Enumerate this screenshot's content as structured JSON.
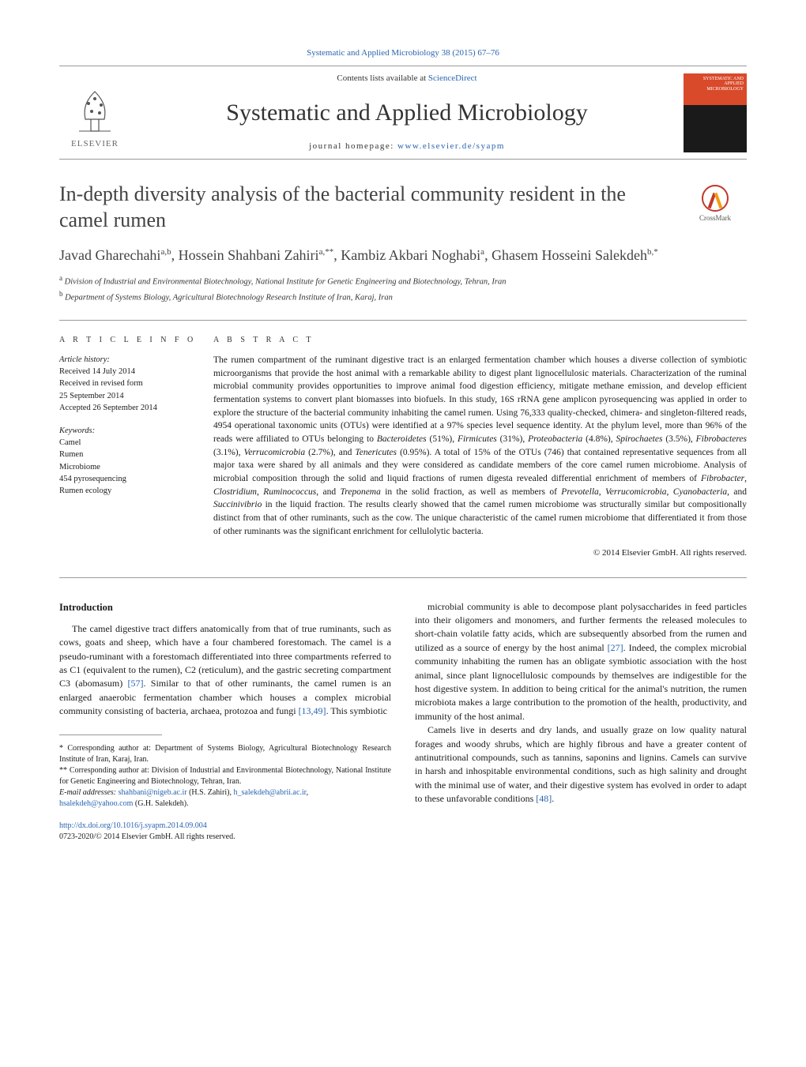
{
  "top_link": "Systematic and Applied Microbiology 38 (2015) 67–76",
  "header": {
    "contents_prefix": "Contents lists available at ",
    "contents_link": "ScienceDirect",
    "journal_name": "Systematic and Applied Microbiology",
    "homepage_prefix": "journal homepage: ",
    "homepage_url": "www.elsevier.de/syapm",
    "elsevier_label": "ELSEVIER",
    "cover_text": "SYSTEMATIC AND APPLIED MICROBIOLOGY"
  },
  "title": "In-depth diversity analysis of the bacterial community resident in the camel rumen",
  "crossmark_label": "CrossMark",
  "authors_html": "Javad Gharechahi<sup>a,b</sup>, Hossein Shahbani Zahiri<sup>a,**</sup>, Kambiz Akbari Noghabi<sup>a</sup>, Ghasem Hosseini Salekdeh<sup>b,*</sup>",
  "affiliations": [
    {
      "sup": "a",
      "text": "Division of Industrial and Environmental Biotechnology, National Institute for Genetic Engineering and Biotechnology, Tehran, Iran"
    },
    {
      "sup": "b",
      "text": "Department of Systems Biology, Agricultural Biotechnology Research Institute of Iran, Karaj, Iran"
    }
  ],
  "article_info": {
    "heading": "a r t i c l e   i n f o",
    "history_title": "Article history:",
    "history": [
      "Received 14 July 2014",
      "Received in revised form",
      "25 September 2014",
      "Accepted 26 September 2014"
    ],
    "keywords_title": "Keywords:",
    "keywords": [
      "Camel",
      "Rumen",
      "Microbiome",
      "454 pyrosequencing",
      "Rumen ecology"
    ]
  },
  "abstract": {
    "heading": "a b s t r a c t",
    "text_html": "The rumen compartment of the ruminant digestive tract is an enlarged fermentation chamber which houses a diverse collection of symbiotic microorganisms that provide the host animal with a remarkable ability to digest plant lignocellulosic materials. Characterization of the ruminal microbial community provides opportunities to improve animal food digestion efficiency, mitigate methane emission, and develop efficient fermentation systems to convert plant biomasses into biofuels. In this study, 16S rRNA gene amplicon pyrosequencing was applied in order to explore the structure of the bacterial community inhabiting the camel rumen. Using 76,333 quality-checked, chimera- and singleton-filtered reads, 4954 operational taxonomic units (OTUs) were identified at a 97% species level sequence identity. At the phylum level, more than 96% of the reads were affiliated to OTUs belonging to <i>Bacteroidetes</i> (51%), <i>Firmicutes</i> (31%), <i>Proteobacteria</i> (4.8%), <i>Spirochaetes</i> (3.5%), <i>Fibrobacteres</i> (3.1%), <i>Verrucomicrobia</i> (2.7%), and <i>Tenericutes</i> (0.95%). A total of 15% of the OTUs (746) that contained representative sequences from all major taxa were shared by all animals and they were considered as candidate members of the core camel rumen microbiome. Analysis of microbial composition through the solid and liquid fractions of rumen digesta revealed differential enrichment of members of <i>Fibrobacter</i>, <i>Clostridium</i>, <i>Ruminococcus</i>, and <i>Treponema</i> in the solid fraction, as well as members of <i>Prevotella</i>, <i>Verrucomicrobia</i>, <i>Cyanobacteria</i>, and <i>Succinivibrio</i> in the liquid fraction. The results clearly showed that the camel rumen microbiome was structurally similar but compositionally distinct from that of other ruminants, such as the cow. The unique characteristic of the camel rumen microbiome that differentiated it from those of other ruminants was the significant enrichment for cellulolytic bacteria.",
    "copyright": "© 2014 Elsevier GmbH. All rights reserved."
  },
  "body": {
    "section_heading": "Introduction",
    "col1": [
      "The camel digestive tract differs anatomically from that of true ruminants, such as cows, goats and sheep, which have a four chambered forestomach. The camel is a pseudo-ruminant with a forestomach differentiated into three compartments referred to as C1 (equivalent to the rumen), C2 (reticulum), and the gastric secreting compartment C3 (abomasum) <span class='cite-link'>[57]</span>. Similar to that of other ruminants, the camel rumen is an enlarged anaerobic fermentation chamber which houses a complex microbial community consisting of bacteria, archaea, protozoa and fungi <span class='cite-link'>[13,49]</span>. This symbiotic"
    ],
    "col2": [
      "microbial community is able to decompose plant polysaccharides in feed particles into their oligomers and monomers, and further ferments the released molecules to short-chain volatile fatty acids, which are subsequently absorbed from the rumen and utilized as a source of energy by the host animal <span class='cite-link'>[27]</span>. Indeed, the complex microbial community inhabiting the rumen has an obligate symbiotic association with the host animal, since plant lignocellulosic compounds by themselves are indigestible for the host digestive system. In addition to being critical for the animal's nutrition, the rumen microbiota makes a large contribution to the promotion of the health, productivity, and immunity of the host animal.",
      "Camels live in deserts and dry lands, and usually graze on low quality natural forages and woody shrubs, which are highly fibrous and have a greater content of antinutritional compounds, such as tannins, saponins and lignins. Camels can survive in harsh and inhospitable environmental conditions, such as high salinity and drought with the minimal use of water, and their digestive system has evolved in order to adapt to these unfavorable conditions <span class='cite-link'>[48]</span>."
    ]
  },
  "footnotes": {
    "star1": "* Corresponding author at: Department of Systems Biology, Agricultural Biotechnology Research Institute of Iran, Karaj, Iran.",
    "star2": "** Corresponding author at: Division of Industrial and Environmental Biotechnology, National Institute for Genetic Engineering and Biotechnology, Tehran, Iran.",
    "emails_label": "E-mail addresses: ",
    "email1": "shahbani@nigeb.ac.ir",
    "email1_who": " (H.S. Zahiri), ",
    "email2": "h_salekdeh@abrii.ac.ir",
    "email2_sep": ", ",
    "email3": "hsalekdeh@yahoo.com",
    "email3_who": " (G.H. Salekdeh)."
  },
  "doi": {
    "url": "http://dx.doi.org/10.1016/j.syapm.2014.09.004",
    "issn_line": "0723-2020/© 2014 Elsevier GmbH. All rights reserved."
  },
  "colors": {
    "link": "#2864b0",
    "text": "#1a1a1a",
    "rule": "#999999",
    "elsevier_orange": "#e67a2e"
  }
}
